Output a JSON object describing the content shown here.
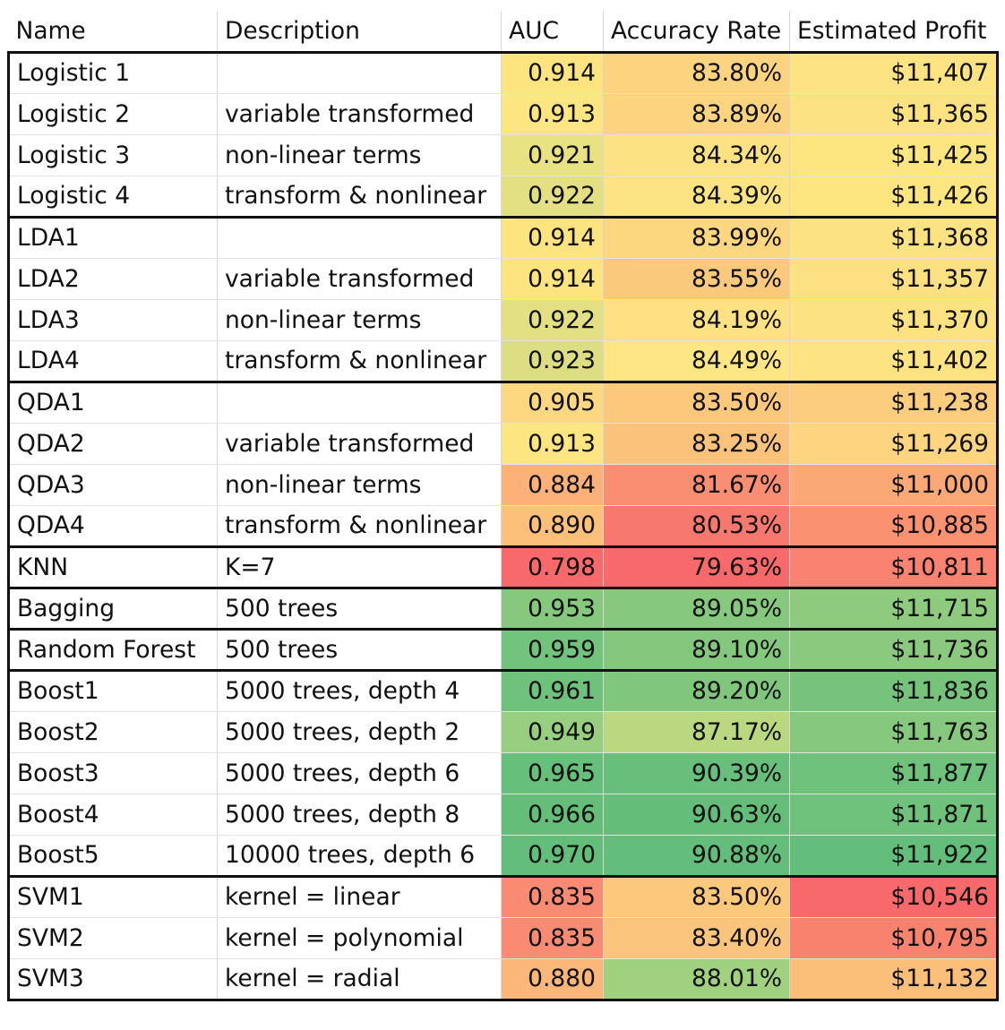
{
  "headers": [
    "Name",
    "Description",
    "AUC",
    "Accuracy Rate",
    "Estimated Profit"
  ],
  "rows": [
    {
      "name": "Logistic 1",
      "desc": "",
      "auc": "0.914",
      "acc": "83.80%",
      "profit": "$11,407",
      "colors": [
        "#fde47f",
        "#fcd37e",
        "#fde381"
      ]
    },
    {
      "name": "Logistic 2",
      "desc": "variable transformed",
      "auc": "0.913",
      "acc": "83.89%",
      "profit": "$11,365",
      "colors": [
        "#fde681",
        "#fcd47f",
        "#fde282"
      ]
    },
    {
      "name": "Logistic 3",
      "desc": "non-linear terms",
      "auc": "0.921",
      "acc": "84.34%",
      "profit": "$11,425",
      "colors": [
        "#e8e283",
        "#fde283",
        "#fde57f"
      ]
    },
    {
      "name": "Logistic 4",
      "desc": "transform & nonlinear",
      "auc": "0.922",
      "acc": "84.39%",
      "profit": "$11,426",
      "colors": [
        "#e3e083",
        "#fde483",
        "#fde57f"
      ]
    },
    {
      "name": "LDA1",
      "desc": "",
      "auc": "0.914",
      "acc": "83.99%",
      "profit": "$11,368",
      "colors": [
        "#fde47f",
        "#fcd780",
        "#fde282"
      ]
    },
    {
      "name": "LDA2",
      "desc": "variable transformed",
      "auc": "0.914",
      "acc": "83.55%",
      "profit": "$11,357",
      "colors": [
        "#fde47f",
        "#fbc97c",
        "#fde082"
      ]
    },
    {
      "name": "LDA3",
      "desc": "non-linear terms",
      "auc": "0.922",
      "acc": "84.19%",
      "profit": "$11,370",
      "colors": [
        "#e3e083",
        "#fde182",
        "#fde282"
      ]
    },
    {
      "name": "LDA4",
      "desc": "transform & nonlinear",
      "auc": "0.923",
      "acc": "84.49%",
      "profit": "$11,402",
      "colors": [
        "#ddde83",
        "#fde683",
        "#fde382"
      ]
    },
    {
      "name": "QDA1",
      "desc": "",
      "auc": "0.905",
      "acc": "83.50%",
      "profit": "$11,238",
      "colors": [
        "#fdd880",
        "#fbc87c",
        "#fdcd7e"
      ]
    },
    {
      "name": "QDA2",
      "desc": "variable transformed",
      "auc": "0.913",
      "acc": "83.25%",
      "profit": "$11,269",
      "colors": [
        "#fde681",
        "#fbc27b",
        "#fdd47f"
      ]
    },
    {
      "name": "QDA3",
      "desc": "non-linear terms",
      "auc": "0.884",
      "acc": "81.67%",
      "profit": "$11,000",
      "colors": [
        "#fbb178",
        "#f98e73",
        "#fba877"
      ]
    },
    {
      "name": "QDA4",
      "desc": "transform & nonlinear",
      "auc": "0.890",
      "acc": "80.53%",
      "profit": "$10,885",
      "colors": [
        "#fcc07b",
        "#f7786e",
        "#fa9272"
      ]
    },
    {
      "name": "KNN",
      "desc": "K=7",
      "auc": "0.798",
      "acc": "79.63%",
      "profit": "$10,811",
      "colors": [
        "#f8696b",
        "#f8696b",
        "#f98370"
      ]
    },
    {
      "name": "Bagging",
      "desc": "500 trees",
      "auc": "0.953",
      "acc": "89.05%",
      "profit": "$11,715",
      "colors": [
        "#86c97e",
        "#86c97e",
        "#8fcb7f"
      ]
    },
    {
      "name": "Random Forest",
      "desc": "500 trees",
      "auc": "0.959",
      "acc": "89.10%",
      "profit": "$11,736",
      "colors": [
        "#72c37c",
        "#84c87e",
        "#8bca7e"
      ]
    },
    {
      "name": "Boost1",
      "desc": "5000 trees, depth 4",
      "auc": "0.961",
      "acc": "89.20%",
      "profit": "$11,836",
      "colors": [
        "#6fc27b",
        "#80c77d",
        "#76c47c"
      ]
    },
    {
      "name": "Boost2",
      "desc": "5000 trees, depth 2",
      "auc": "0.949",
      "acc": "87.17%",
      "profit": "$11,763",
      "colors": [
        "#97ce7f",
        "#b9d880",
        "#85c87e"
      ]
    },
    {
      "name": "Boost3",
      "desc": "5000 trees, depth 6",
      "auc": "0.965",
      "acc": "90.39%",
      "profit": "$11,877",
      "colors": [
        "#66bf7a",
        "#68bf7b",
        "#6ec27b"
      ]
    },
    {
      "name": "Boost4",
      "desc": "5000 trees, depth 8",
      "auc": "0.966",
      "acc": "90.63%",
      "profit": "$11,871",
      "colors": [
        "#64be7a",
        "#64be7a",
        "#6fc27b"
      ]
    },
    {
      "name": "Boost5",
      "desc": "10000 trees, depth 6",
      "auc": "0.970",
      "acc": "90.88%",
      "profit": "$11,922",
      "colors": [
        "#63be7b",
        "#63be7b",
        "#63be7b"
      ]
    },
    {
      "name": "SVM1",
      "desc": "kernel = linear",
      "auc": "0.835",
      "acc": "83.50%",
      "profit": "$10,546",
      "colors": [
        "#f98b72",
        "#fcc87c",
        "#f8696b"
      ]
    },
    {
      "name": "SVM2",
      "desc": "kernel = polynomial",
      "auc": "0.835",
      "acc": "83.40%",
      "profit": "$10,795",
      "colors": [
        "#f98b72",
        "#fbc47c",
        "#f9826f"
      ]
    },
    {
      "name": "SVM3",
      "desc": "kernel = radial",
      "auc": "0.880",
      "acc": "88.01%",
      "profit": "$11,132",
      "colors": [
        "#fbb779",
        "#a0d17f",
        "#fcbf7a"
      ]
    }
  ],
  "group_ends": [
    3,
    7,
    11,
    12,
    13,
    14,
    19,
    22
  ]
}
